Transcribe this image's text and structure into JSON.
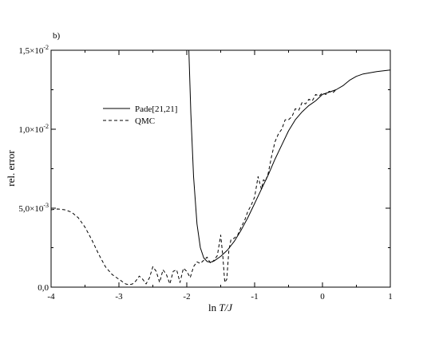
{
  "chart_data": {
    "type": "line",
    "panel_label": "b)",
    "title": "",
    "xlabel_parts": [
      "ln ",
      "T/J"
    ],
    "ylabel": "rel. error",
    "xlim": [
      -4,
      1
    ],
    "ylim": [
      0,
      0.015
    ],
    "x_ticks": [
      -4,
      -3,
      -2,
      -1,
      0,
      1
    ],
    "x_tick_labels": [
      "-4",
      "-3",
      "-2",
      "-1",
      "0",
      "1"
    ],
    "y_ticks": [
      0,
      0.005,
      0.01,
      0.015
    ],
    "y_tick_labels": [
      {
        "mantissa": "0,0",
        "exponent": ""
      },
      {
        "mantissa": "5,0×10",
        "exponent": "-3"
      },
      {
        "mantissa": "1,0×10",
        "exponent": "-2"
      },
      {
        "mantissa": "1,5×10",
        "exponent": "-2"
      }
    ],
    "grid": false,
    "legend_position": "upper-left",
    "series": [
      {
        "name": "Pade[21,21]",
        "style": "solid",
        "color": "#000000",
        "x": [
          -1.97,
          -1.94,
          -1.9,
          -1.85,
          -1.8,
          -1.75,
          -1.7,
          -1.65,
          -1.6,
          -1.5,
          -1.4,
          -1.3,
          -1.2,
          -1.1,
          -1.0,
          -0.9,
          -0.8,
          -0.7,
          -0.6,
          -0.5,
          -0.4,
          -0.3,
          -0.2,
          -0.1,
          0.0,
          0.1,
          0.2,
          0.3,
          0.4,
          0.5,
          0.6,
          0.8,
          1.0
        ],
        "y": [
          0.015,
          0.011,
          0.007,
          0.004,
          0.0025,
          0.00185,
          0.00162,
          0.00158,
          0.00165,
          0.00195,
          0.00235,
          0.0029,
          0.0036,
          0.0044,
          0.0053,
          0.0062,
          0.0071,
          0.0081,
          0.009,
          0.0099,
          0.0106,
          0.0111,
          0.0115,
          0.0118,
          0.0122,
          0.01235,
          0.0125,
          0.01275,
          0.0131,
          0.01335,
          0.0135,
          0.01365,
          0.01375
        ]
      },
      {
        "name": "QMC",
        "style": "dashed",
        "color": "#000000",
        "x": [
          -4.0,
          -3.9,
          -3.8,
          -3.7,
          -3.6,
          -3.5,
          -3.4,
          -3.3,
          -3.2,
          -3.1,
          -3.0,
          -2.95,
          -2.9,
          -2.85,
          -2.8,
          -2.75,
          -2.7,
          -2.65,
          -2.6,
          -2.55,
          -2.5,
          -2.45,
          -2.4,
          -2.35,
          -2.3,
          -2.25,
          -2.2,
          -2.15,
          -2.1,
          -2.05,
          -2.0,
          -1.95,
          -1.9,
          -1.85,
          -1.8,
          -1.75,
          -1.7,
          -1.65,
          -1.6,
          -1.55,
          -1.5,
          -1.47,
          -1.44,
          -1.41,
          -1.38,
          -1.35,
          -1.3,
          -1.25,
          -1.2,
          -1.15,
          -1.1,
          -1.05,
          -1.0,
          -0.95,
          -0.9,
          -0.87,
          -0.84,
          -0.8,
          -0.75,
          -0.7,
          -0.65,
          -0.6,
          -0.55,
          -0.5,
          -0.45,
          -0.4,
          -0.35,
          -0.3,
          -0.25,
          -0.2,
          -0.15,
          -0.1,
          -0.05,
          0.0,
          0.05,
          0.1,
          0.15,
          0.2
        ],
        "y": [
          0.0049,
          0.00495,
          0.0049,
          0.00475,
          0.0044,
          0.0038,
          0.003,
          0.0021,
          0.0013,
          0.0008,
          0.0005,
          0.00035,
          0.0002,
          0.00015,
          0.0002,
          0.0004,
          0.0007,
          0.0005,
          0.0002,
          0.0006,
          0.0013,
          0.001,
          0.0003,
          0.0011,
          0.0008,
          0.0002,
          0.001,
          0.0011,
          0.0003,
          0.0012,
          0.001,
          0.0006,
          0.0013,
          0.0016,
          0.0015,
          0.0017,
          0.0019,
          0.0015,
          0.0017,
          0.002,
          0.0033,
          0.002,
          0.0003,
          0.0005,
          0.0023,
          0.003,
          0.0031,
          0.0033,
          0.0038,
          0.0042,
          0.0048,
          0.0052,
          0.0057,
          0.007,
          0.0062,
          0.0068,
          0.0067,
          0.0072,
          0.0083,
          0.0092,
          0.0097,
          0.01,
          0.0106,
          0.0106,
          0.0108,
          0.0113,
          0.0112,
          0.0117,
          0.0116,
          0.0119,
          0.0118,
          0.0122,
          0.0121,
          0.0123,
          0.0122,
          0.0124,
          0.0123,
          0.0125
        ]
      }
    ]
  }
}
